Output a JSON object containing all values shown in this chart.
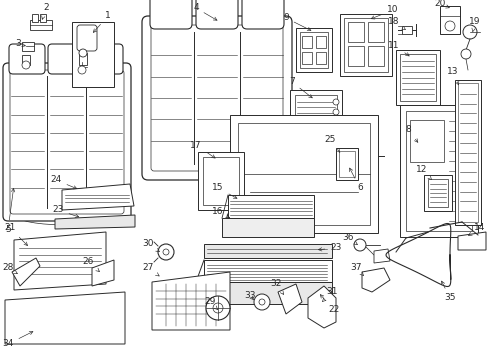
{
  "bg_color": "#ffffff",
  "line_color": "#2a2a2a",
  "figsize": [
    4.9,
    3.6
  ],
  "dpi": 100,
  "label_fontsize": 6.5
}
